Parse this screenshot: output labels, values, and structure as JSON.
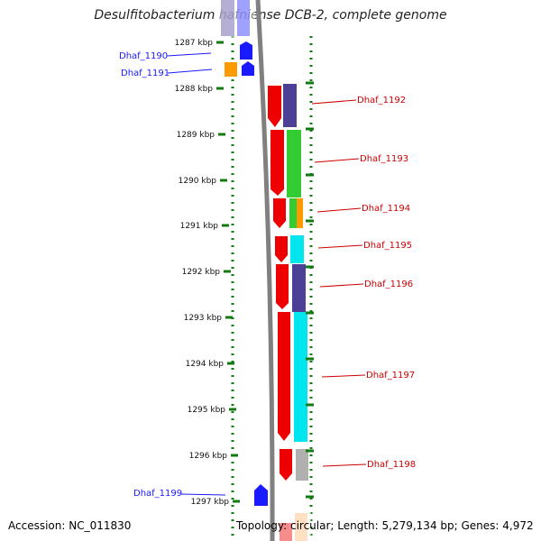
{
  "title": "Desulfitobacterium hafniense DCB-2, complete genome",
  "footer": {
    "accession": "Accession: NC_011830",
    "topology": "Topology: circular; Length: 5,279,134 bp; Genes: 4,972"
  },
  "ticks": [
    {
      "kbp": 1287,
      "label": "1287 kbp"
    },
    {
      "kbp": 1288,
      "label": "1288 kbp"
    },
    {
      "kbp": 1289,
      "label": "1289 kbp"
    },
    {
      "kbp": 1290,
      "label": "1290 kbp"
    },
    {
      "kbp": 1291,
      "label": "1291 kbp"
    },
    {
      "kbp": 1292,
      "label": "1292 kbp"
    },
    {
      "kbp": 1293,
      "label": "1293 kbp"
    },
    {
      "kbp": 1294,
      "label": "1294 kbp"
    },
    {
      "kbp": 1295,
      "label": "1295 kbp"
    },
    {
      "kbp": 1296,
      "label": "1296 kbp"
    },
    {
      "kbp": 1297,
      "label": "1297 kbp"
    }
  ],
  "genes_left": [
    {
      "name": "Dhaf_1190",
      "color": "#1a1aff"
    },
    {
      "name": "Dhaf_1191",
      "color": "#1a1aff"
    },
    {
      "name": "Dhaf_1199",
      "color": "#1a1aff"
    }
  ],
  "genes_right": [
    {
      "name": "Dhaf_1192",
      "color": "#cc0000"
    },
    {
      "name": "Dhaf_1193",
      "color": "#cc0000"
    },
    {
      "name": "Dhaf_1194",
      "color": "#cc0000"
    },
    {
      "name": "Dhaf_1195",
      "color": "#cc0000"
    },
    {
      "name": "Dhaf_1196",
      "color": "#cc0000"
    },
    {
      "name": "Dhaf_1197",
      "color": "#cc0000"
    },
    {
      "name": "Dhaf_1198",
      "color": "#cc0000"
    }
  ],
  "colors": {
    "tick": "#117a11",
    "backbone": "#808080",
    "strand_minus": "#1a1aff",
    "strand_plus": "#ee0000",
    "cog_purple": "#4b3f96",
    "cog_green": "#33cc33",
    "cog_orange": "#ff9900",
    "cog_cyan": "#00e5ee",
    "cog_gray": "#b0b0b0"
  }
}
